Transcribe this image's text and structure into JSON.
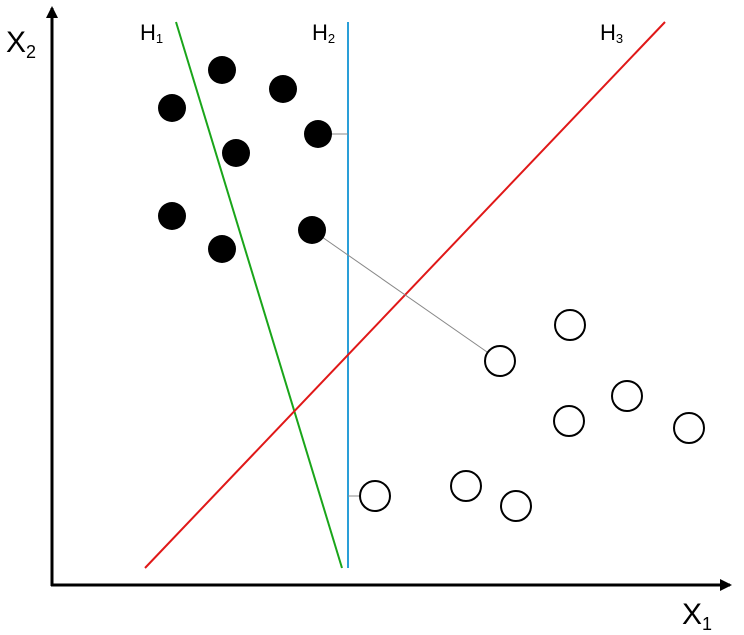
{
  "axes": {
    "y": {
      "label": "X",
      "subscript": "2"
    },
    "x": {
      "label": "X",
      "subscript": "1"
    }
  },
  "hyperplanes": [
    {
      "label": "H",
      "subscript": "1"
    },
    {
      "label": "H",
      "subscript": "2"
    },
    {
      "label": "H",
      "subscript": "3"
    }
  ]
}
